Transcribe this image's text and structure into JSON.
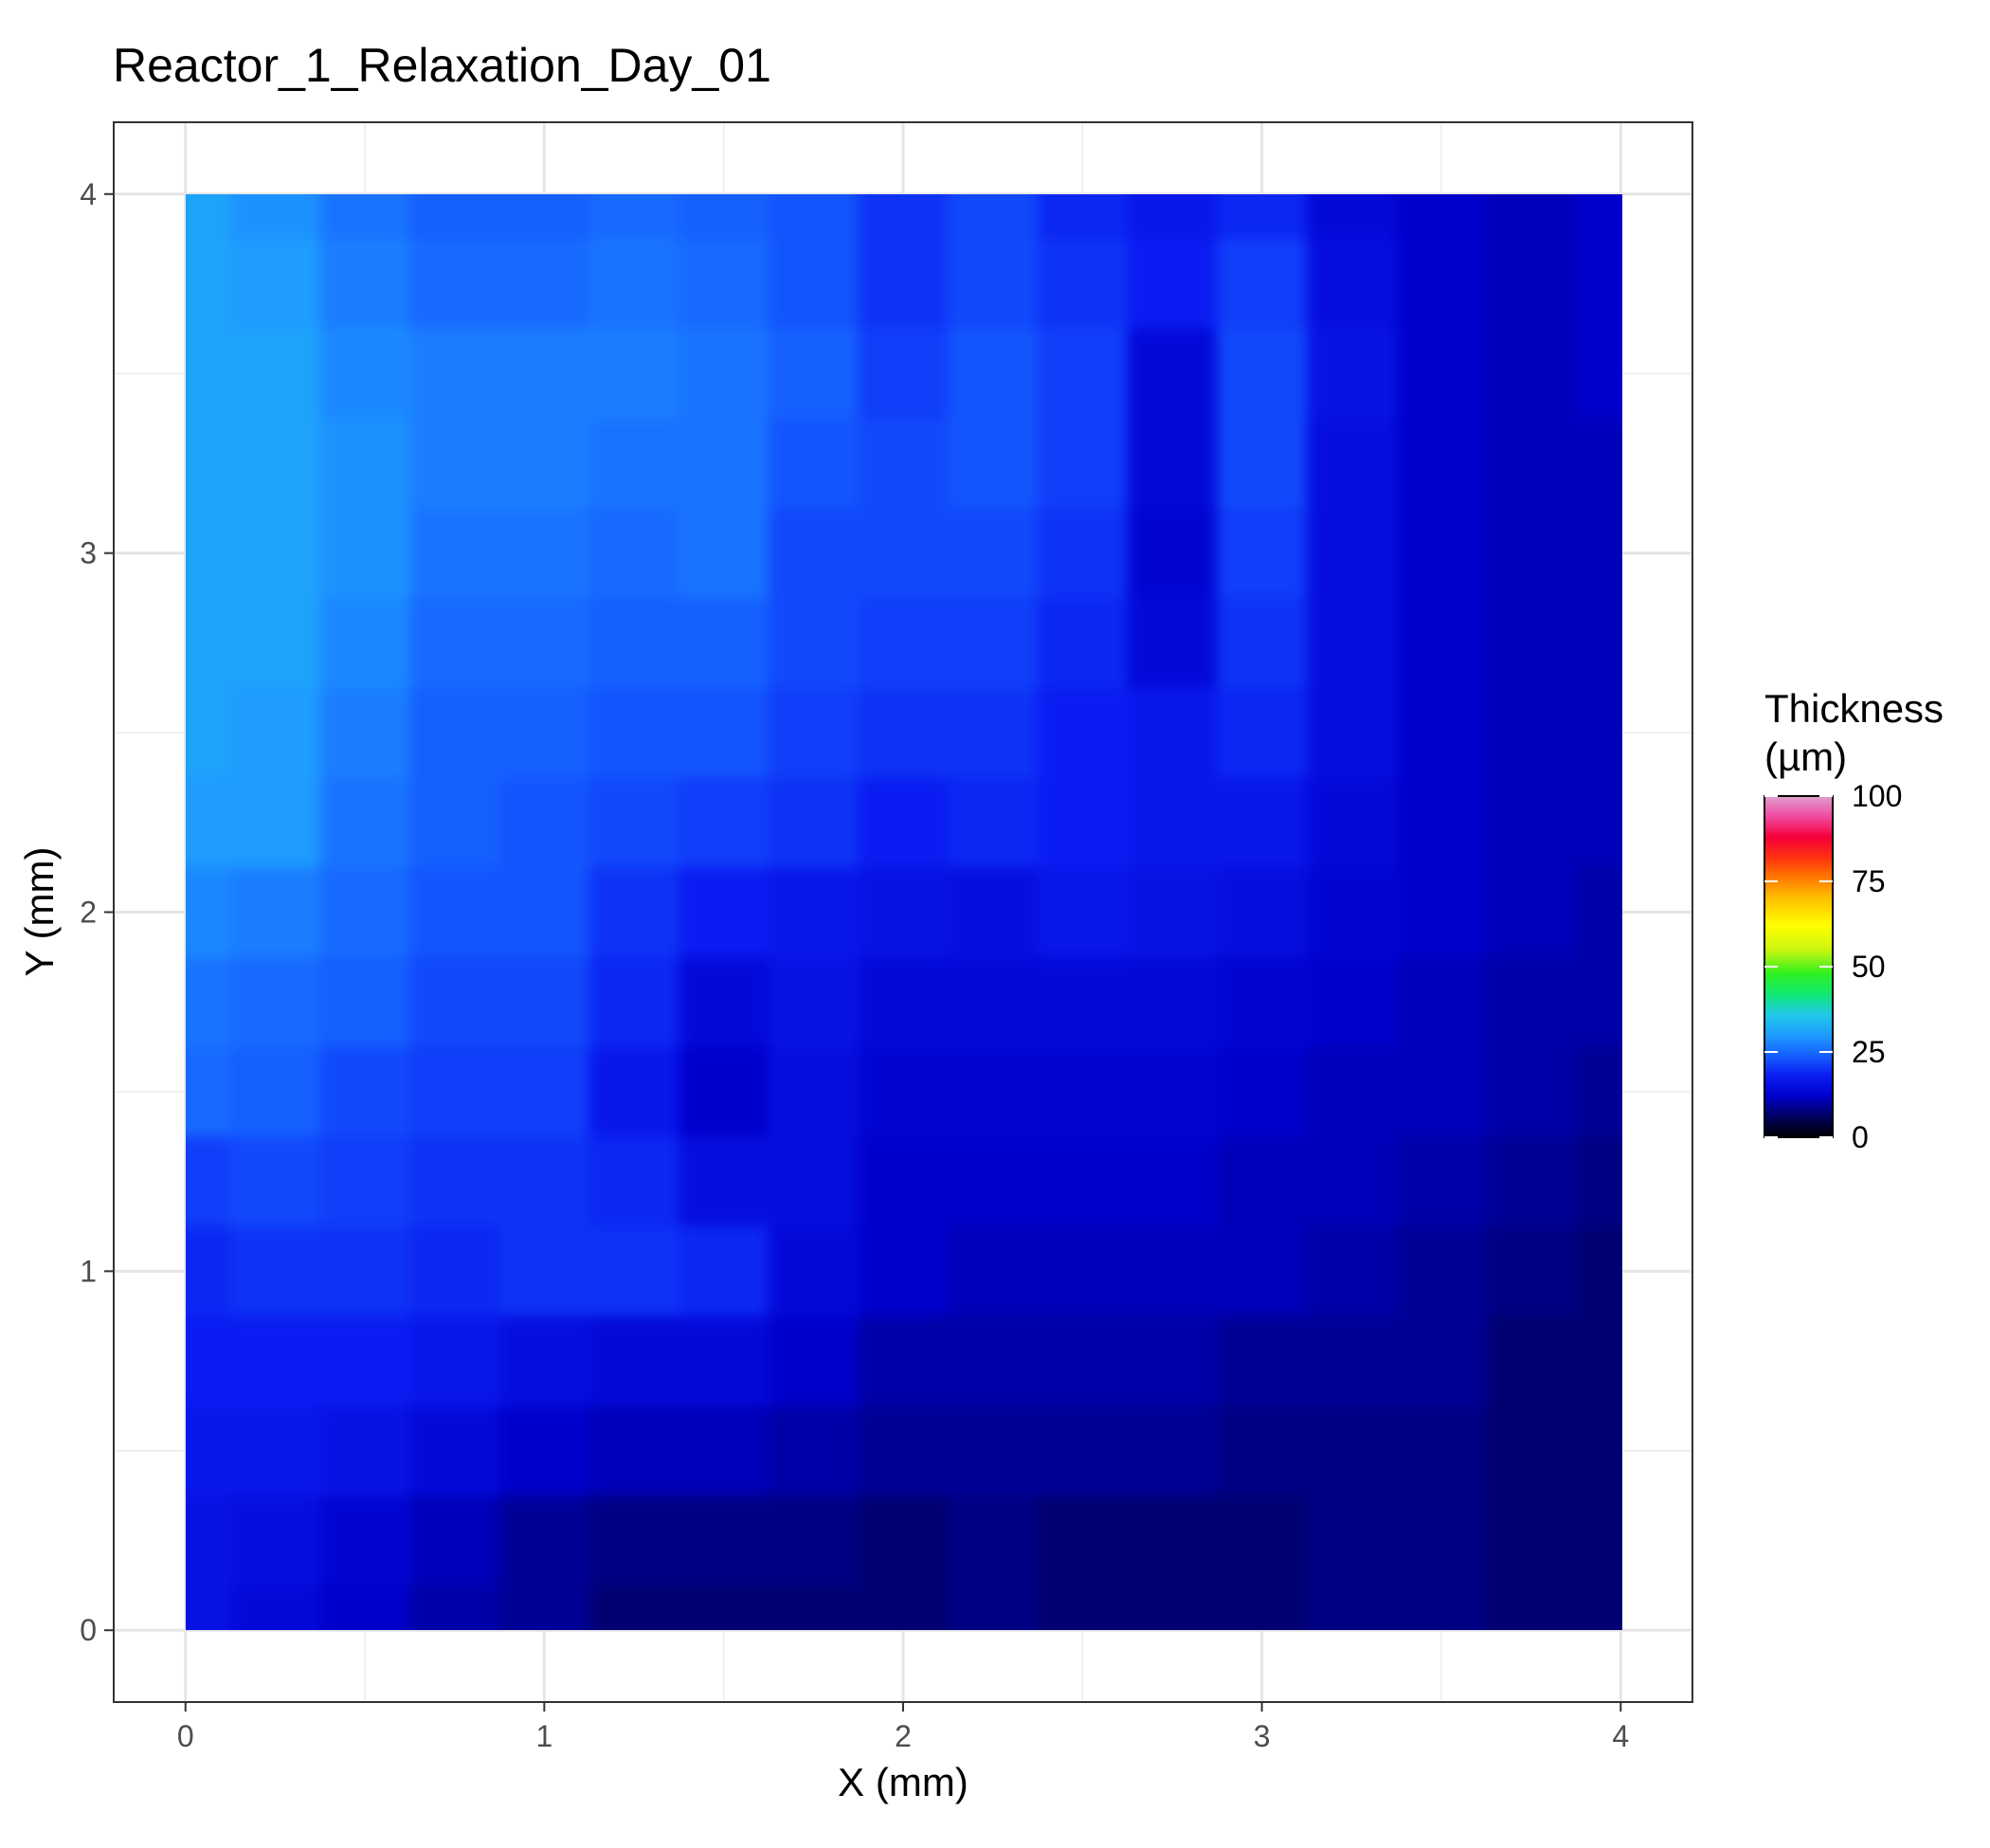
{
  "chart_data": {
    "type": "heatmap",
    "title": "Reactor_1_Relaxation_Day_01",
    "xlabel": "X (mm)",
    "ylabel": "Y (mm)",
    "xlim": [
      -0.2,
      4.2
    ],
    "ylim": [
      -0.2,
      4.2
    ],
    "x_ticks": [
      0,
      1,
      2,
      3,
      4
    ],
    "y_ticks": [
      0,
      1,
      2,
      3,
      4
    ],
    "grid": true,
    "legend": {
      "title_lines": [
        "Thickness",
        "(µm)"
      ],
      "position": "right",
      "ticks": [
        0,
        25,
        50,
        75,
        100
      ],
      "range": [
        0,
        100
      ],
      "colors": [
        [
          0,
          "#000000"
        ],
        [
          6,
          "#000060"
        ],
        [
          12,
          "#0000cc"
        ],
        [
          18,
          "#0a1cf2"
        ],
        [
          24,
          "#1560ff"
        ],
        [
          30,
          "#1e9cff"
        ],
        [
          36,
          "#20c8e8"
        ],
        [
          42,
          "#10e870"
        ],
        [
          48,
          "#30f020"
        ],
        [
          55,
          "#ccf510"
        ],
        [
          62,
          "#ffff00"
        ],
        [
          70,
          "#ffc000"
        ],
        [
          76,
          "#ff7a00"
        ],
        [
          82,
          "#ff3010"
        ],
        [
          88,
          "#f5003a"
        ],
        [
          94,
          "#f04aa0"
        ],
        [
          100,
          "#e0a0d0"
        ]
      ]
    },
    "x": [
      0,
      0.25,
      0.5,
      0.75,
      1,
      1.25,
      1.5,
      1.75,
      2,
      2.25,
      2.5,
      2.75,
      3,
      3.25,
      3.5,
      3.75,
      4
    ],
    "y": [
      4,
      3.75,
      3.5,
      3.25,
      3,
      2.75,
      2.5,
      2.25,
      2,
      1.75,
      1.5,
      1.25,
      1,
      0.75,
      0.5,
      0.25,
      0
    ],
    "z": [
      [
        31,
        29,
        26,
        24,
        24,
        25,
        24,
        23,
        20,
        22,
        19,
        17,
        19,
        14,
        12,
        11,
        12
      ],
      [
        31,
        30,
        27,
        25,
        25,
        26,
        25,
        23,
        20,
        22,
        20,
        18,
        21,
        15,
        12,
        11,
        12
      ],
      [
        31,
        31,
        28,
        27,
        27,
        27,
        26,
        24,
        21,
        23,
        21,
        14,
        22,
        16,
        12,
        11,
        12
      ],
      [
        31,
        31,
        29,
        27,
        27,
        26,
        26,
        23,
        22,
        23,
        21,
        14,
        22,
        15,
        12,
        11,
        11
      ],
      [
        31,
        31,
        29,
        26,
        26,
        25,
        26,
        22,
        22,
        22,
        20,
        13,
        21,
        15,
        12,
        11,
        11
      ],
      [
        31,
        31,
        28,
        25,
        25,
        24,
        24,
        22,
        21,
        21,
        19,
        14,
        20,
        15,
        12,
        11,
        11
      ],
      [
        31,
        30,
        27,
        24,
        24,
        23,
        23,
        21,
        20,
        20,
        18,
        17,
        19,
        15,
        12,
        11,
        11
      ],
      [
        30,
        30,
        26,
        24,
        23,
        22,
        21,
        20,
        18,
        19,
        18,
        17,
        17,
        14,
        12,
        11,
        11
      ],
      [
        28,
        27,
        25,
        23,
        23,
        20,
        18,
        17,
        16,
        15,
        17,
        16,
        15,
        13,
        12,
        11,
        10
      ],
      [
        26,
        25,
        24,
        22,
        22,
        19,
        14,
        16,
        14,
        14,
        14,
        14,
        13,
        12,
        11,
        10,
        10
      ],
      [
        25,
        24,
        22,
        21,
        21,
        17,
        12,
        15,
        13,
        13,
        13,
        13,
        12,
        11,
        11,
        10,
        9
      ],
      [
        21,
        22,
        21,
        20,
        20,
        19,
        15,
        15,
        12,
        12,
        12,
        12,
        11,
        11,
        10,
        9,
        8
      ],
      [
        19,
        20,
        20,
        19,
        20,
        20,
        19,
        14,
        12,
        11,
        11,
        11,
        11,
        10,
        9,
        8,
        7
      ],
      [
        18,
        18,
        18,
        17,
        15,
        14,
        14,
        12,
        10,
        10,
        10,
        10,
        9,
        9,
        9,
        7,
        7
      ],
      [
        17,
        17,
        16,
        14,
        12,
        11,
        11,
        10,
        9,
        9,
        9,
        9,
        8,
        8,
        8,
        7,
        7
      ],
      [
        16,
        15,
        13,
        11,
        9,
        8,
        8,
        8,
        7,
        8,
        7,
        7,
        7,
        8,
        8,
        7,
        7
      ],
      [
        16,
        14,
        12,
        10,
        9,
        7,
        7,
        7,
        7,
        8,
        7,
        7,
        7,
        8,
        8,
        7,
        7
      ]
    ]
  }
}
